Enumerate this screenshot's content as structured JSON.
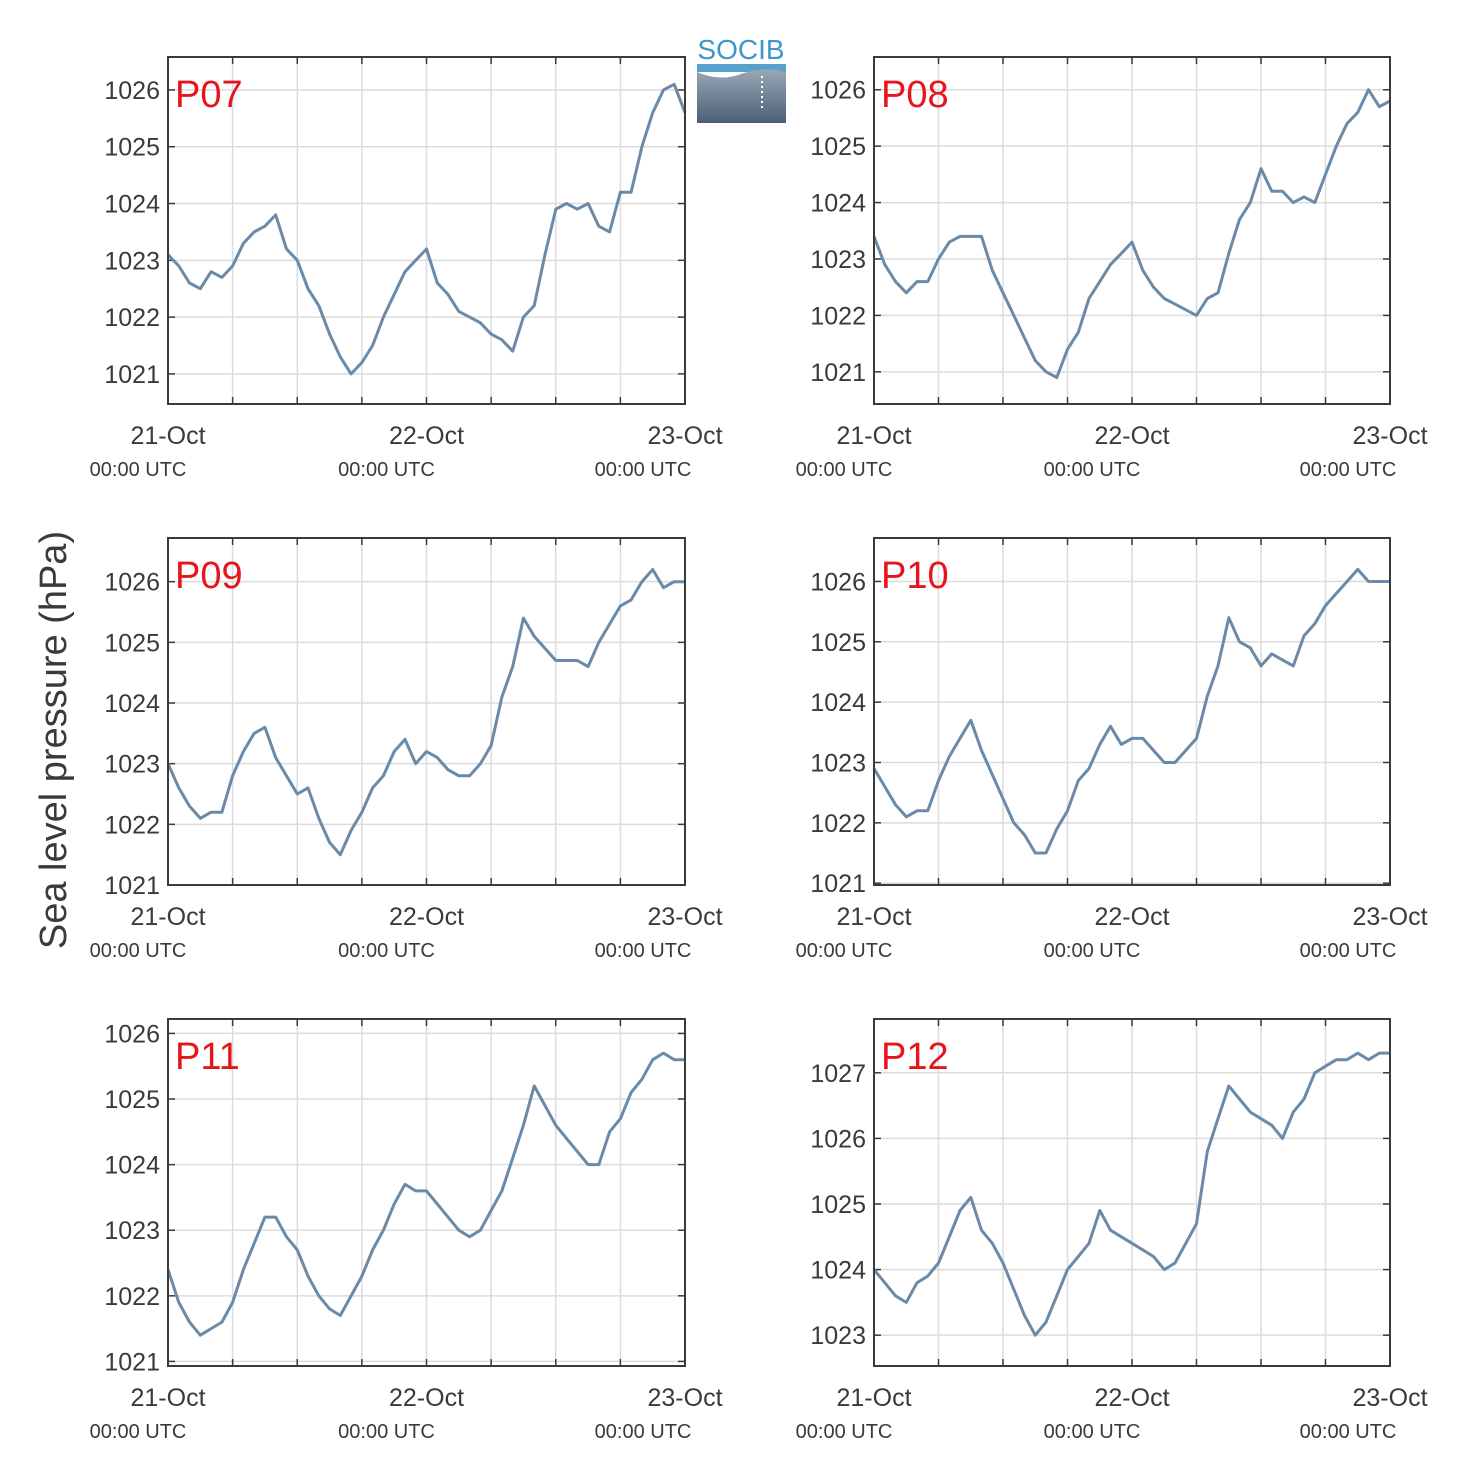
{
  "figure": {
    "ylabel": "Sea level pressure (hPa)",
    "logo_text": "SOCIB",
    "line_color": "#6a8aa8",
    "label_color": "#e8141c",
    "grid_color": "#dcdcdc",
    "axis_color": "#3a3a3a"
  },
  "chart_data": [
    {
      "type": "line",
      "label": "P07",
      "x_ticks": [
        {
          "date": "21-Oct",
          "time": "00:00 UTC"
        },
        {
          "date": "22-Oct",
          "time": "00:00 UTC"
        },
        {
          "date": "23-Oct",
          "time": "00:00 UTC"
        }
      ],
      "xlim": [
        0,
        48
      ],
      "ylim": [
        1020.47,
        1026.58
      ],
      "yticks": [
        1021,
        1022,
        1023,
        1024,
        1025,
        1026
      ],
      "x": [
        0,
        1,
        2,
        3,
        4,
        5,
        6,
        7,
        8,
        9,
        10,
        11,
        12,
        13,
        14,
        15,
        16,
        17,
        18,
        19,
        20,
        21,
        22,
        23,
        24,
        25,
        26,
        27,
        28,
        29,
        30,
        31,
        32,
        33,
        34,
        35,
        36,
        37,
        38,
        39,
        40,
        41,
        42,
        43,
        44,
        45,
        46,
        47,
        48
      ],
      "values": [
        1023.1,
        1022.9,
        1022.6,
        1022.5,
        1022.8,
        1022.7,
        1022.9,
        1023.3,
        1023.5,
        1023.6,
        1023.8,
        1023.2,
        1023.0,
        1022.5,
        1022.2,
        1021.7,
        1021.3,
        1021.0,
        1021.2,
        1021.5,
        1022.0,
        1022.4,
        1022.8,
        1023.0,
        1023.2,
        1022.6,
        1022.4,
        1022.1,
        1022.0,
        1021.9,
        1021.7,
        1021.6,
        1021.4,
        1022.0,
        1022.2,
        1023.1,
        1023.9,
        1024.0,
        1023.9,
        1024.0,
        1023.6,
        1023.5,
        1024.2,
        1024.2,
        1025.0,
        1025.6,
        1026.0,
        1026.1,
        1025.6
      ]
    },
    {
      "type": "line",
      "label": "P08",
      "x_ticks": [
        {
          "date": "21-Oct",
          "time": "00:00 UTC"
        },
        {
          "date": "22-Oct",
          "time": "00:00 UTC"
        },
        {
          "date": "23-Oct",
          "time": "00:00 UTC"
        }
      ],
      "xlim": [
        0,
        48
      ],
      "ylim": [
        1020.43,
        1026.58
      ],
      "yticks": [
        1021,
        1022,
        1023,
        1024,
        1025,
        1026
      ],
      "x": [
        0,
        1,
        2,
        3,
        4,
        5,
        6,
        7,
        8,
        9,
        10,
        11,
        12,
        13,
        14,
        15,
        16,
        17,
        18,
        19,
        20,
        21,
        22,
        23,
        24,
        25,
        26,
        27,
        28,
        29,
        30,
        31,
        32,
        33,
        34,
        35,
        36,
        37,
        38,
        39,
        40,
        41,
        42,
        43,
        44,
        45,
        46,
        47,
        48
      ],
      "values": [
        1023.4,
        1022.9,
        1022.6,
        1022.4,
        1022.6,
        1022.6,
        1023.0,
        1023.3,
        1023.4,
        1023.4,
        1023.4,
        1022.8,
        1022.4,
        1022.0,
        1021.6,
        1021.2,
        1021.0,
        1020.9,
        1021.4,
        1021.7,
        1022.3,
        1022.6,
        1022.9,
        1023.1,
        1023.3,
        1022.8,
        1022.5,
        1022.3,
        1022.2,
        1022.1,
        1022.0,
        1022.3,
        1022.4,
        1023.1,
        1023.7,
        1024.0,
        1024.6,
        1024.2,
        1024.2,
        1024.0,
        1024.1,
        1024.0,
        1024.5,
        1025.0,
        1025.4,
        1025.6,
        1026.0,
        1025.7,
        1025.8
      ]
    },
    {
      "type": "line",
      "label": "P09",
      "x_ticks": [
        {
          "date": "21-Oct",
          "time": "00:00 UTC"
        },
        {
          "date": "22-Oct",
          "time": "00:00 UTC"
        },
        {
          "date": "23-Oct",
          "time": "00:00 UTC"
        }
      ],
      "xlim": [
        0,
        48
      ],
      "ylim": [
        1021.0,
        1026.72
      ],
      "yticks": [
        1021,
        1022,
        1023,
        1024,
        1025,
        1026
      ],
      "x": [
        0,
        1,
        2,
        3,
        4,
        5,
        6,
        7,
        8,
        9,
        10,
        11,
        12,
        13,
        14,
        15,
        16,
        17,
        18,
        19,
        20,
        21,
        22,
        23,
        24,
        25,
        26,
        27,
        28,
        29,
        30,
        31,
        32,
        33,
        34,
        35,
        36,
        37,
        38,
        39,
        40,
        41,
        42,
        43,
        44,
        45,
        46,
        47,
        48
      ],
      "values": [
        1023.0,
        1022.6,
        1022.3,
        1022.1,
        1022.2,
        1022.2,
        1022.8,
        1023.2,
        1023.5,
        1023.6,
        1023.1,
        1022.8,
        1022.5,
        1022.6,
        1022.1,
        1021.7,
        1021.5,
        1021.9,
        1022.2,
        1022.6,
        1022.8,
        1023.2,
        1023.4,
        1023.0,
        1023.2,
        1023.1,
        1022.9,
        1022.8,
        1022.8,
        1023.0,
        1023.3,
        1024.1,
        1024.6,
        1025.4,
        1025.1,
        1024.9,
        1024.7,
        1024.7,
        1024.7,
        1024.6,
        1025.0,
        1025.3,
        1025.6,
        1025.7,
        1026.0,
        1026.2,
        1025.9,
        1026.0,
        1026.0
      ]
    },
    {
      "type": "line",
      "label": "P10",
      "x_ticks": [
        {
          "date": "21-Oct",
          "time": "00:00 UTC"
        },
        {
          "date": "22-Oct",
          "time": "00:00 UTC"
        },
        {
          "date": "23-Oct",
          "time": "00:00 UTC"
        }
      ],
      "xlim": [
        0,
        48
      ],
      "ylim": [
        1020.97,
        1026.72
      ],
      "yticks": [
        1021,
        1022,
        1023,
        1024,
        1025,
        1026
      ],
      "x": [
        0,
        1,
        2,
        3,
        4,
        5,
        6,
        7,
        8,
        9,
        10,
        11,
        12,
        13,
        14,
        15,
        16,
        17,
        18,
        19,
        20,
        21,
        22,
        23,
        24,
        25,
        26,
        27,
        28,
        29,
        30,
        31,
        32,
        33,
        34,
        35,
        36,
        37,
        38,
        39,
        40,
        41,
        42,
        43,
        44,
        45,
        46,
        47,
        48
      ],
      "values": [
        1022.9,
        1022.6,
        1022.3,
        1022.1,
        1022.2,
        1022.2,
        1022.7,
        1023.1,
        1023.4,
        1023.7,
        1023.2,
        1022.8,
        1022.4,
        1022.0,
        1021.8,
        1021.5,
        1021.5,
        1021.9,
        1022.2,
        1022.7,
        1022.9,
        1023.3,
        1023.6,
        1023.3,
        1023.4,
        1023.4,
        1023.2,
        1023.0,
        1023.0,
        1023.2,
        1023.4,
        1024.1,
        1024.6,
        1025.4,
        1025.0,
        1024.9,
        1024.6,
        1024.8,
        1024.7,
        1024.6,
        1025.1,
        1025.3,
        1025.6,
        1025.8,
        1026.0,
        1026.2,
        1026.0,
        1026.0,
        1026.0
      ]
    },
    {
      "type": "line",
      "label": "P11",
      "x_ticks": [
        {
          "date": "21-Oct",
          "time": "00:00 UTC"
        },
        {
          "date": "22-Oct",
          "time": "00:00 UTC"
        },
        {
          "date": "23-Oct",
          "time": "00:00 UTC"
        }
      ],
      "xlim": [
        0,
        48
      ],
      "ylim": [
        1020.93,
        1026.22
      ],
      "yticks": [
        1021,
        1022,
        1023,
        1024,
        1025,
        1026
      ],
      "x": [
        0,
        1,
        2,
        3,
        4,
        5,
        6,
        7,
        8,
        9,
        10,
        11,
        12,
        13,
        14,
        15,
        16,
        17,
        18,
        19,
        20,
        21,
        22,
        23,
        24,
        25,
        26,
        27,
        28,
        29,
        30,
        31,
        32,
        33,
        34,
        35,
        36,
        37,
        38,
        39,
        40,
        41,
        42,
        43,
        44,
        45,
        46,
        47,
        48
      ],
      "values": [
        1022.4,
        1021.9,
        1021.6,
        1021.4,
        1021.5,
        1021.6,
        1021.9,
        1022.4,
        1022.8,
        1023.2,
        1023.2,
        1022.9,
        1022.7,
        1022.3,
        1022.0,
        1021.8,
        1021.7,
        1022.0,
        1022.3,
        1022.7,
        1023.0,
        1023.4,
        1023.7,
        1023.6,
        1023.6,
        1023.4,
        1023.2,
        1023.0,
        1022.9,
        1023.0,
        1023.3,
        1023.6,
        1024.1,
        1024.6,
        1025.2,
        1024.9,
        1024.6,
        1024.4,
        1024.2,
        1024.0,
        1024.0,
        1024.5,
        1024.7,
        1025.1,
        1025.3,
        1025.6,
        1025.7,
        1025.6,
        1025.6
      ]
    },
    {
      "type": "line",
      "label": "P12",
      "x_ticks": [
        {
          "date": "21-Oct",
          "time": "00:00 UTC"
        },
        {
          "date": "22-Oct",
          "time": "00:00 UTC"
        },
        {
          "date": "23-Oct",
          "time": "00:00 UTC"
        }
      ],
      "xlim": [
        0,
        48
      ],
      "ylim": [
        1022.53,
        1027.82
      ],
      "yticks": [
        1023,
        1024,
        1025,
        1026,
        1027
      ],
      "x": [
        0,
        1,
        2,
        3,
        4,
        5,
        6,
        7,
        8,
        9,
        10,
        11,
        12,
        13,
        14,
        15,
        16,
        17,
        18,
        19,
        20,
        21,
        22,
        23,
        24,
        25,
        26,
        27,
        28,
        29,
        30,
        31,
        32,
        33,
        34,
        35,
        36,
        37,
        38,
        39,
        40,
        41,
        42,
        43,
        44,
        45,
        46,
        47,
        48
      ],
      "values": [
        1024.0,
        1023.8,
        1023.6,
        1023.5,
        1023.8,
        1023.9,
        1024.1,
        1024.5,
        1024.9,
        1025.1,
        1024.6,
        1024.4,
        1024.1,
        1023.7,
        1023.3,
        1023.0,
        1023.2,
        1023.6,
        1024.0,
        1024.2,
        1024.4,
        1024.9,
        1024.6,
        1024.5,
        1024.4,
        1024.3,
        1024.2,
        1024.0,
        1024.1,
        1024.4,
        1024.7,
        1025.8,
        1026.3,
        1026.8,
        1026.6,
        1026.4,
        1026.3,
        1026.2,
        1026.0,
        1026.4,
        1026.6,
        1027.0,
        1027.1,
        1027.2,
        1027.2,
        1027.3,
        1027.2,
        1027.3,
        1027.3
      ]
    }
  ]
}
